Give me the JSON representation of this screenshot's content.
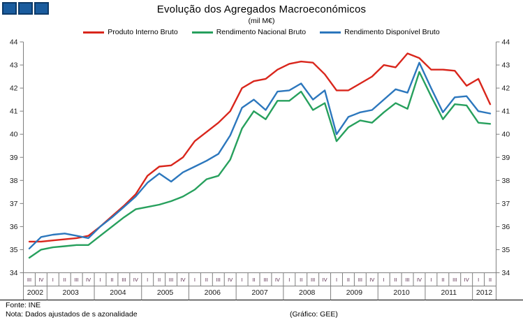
{
  "title": "Evolução dos Agregados  Macroeconómicos",
  "subtitle": "(mil M€)",
  "logo": {
    "square_count": 3,
    "fill_color": "#1a5c9e",
    "border_color": "#0d3a68"
  },
  "footer": {
    "source": "Fonte: INE",
    "note": "Nota: Dados  ajustados  de s azonalidade",
    "credit": "(Gráfico:  GEE)"
  },
  "axis": {
    "y_min": 34,
    "y_max": 44,
    "y_step": 1,
    "axis_color": "#7f7f7f",
    "tick_label_color": "#1a1a1a",
    "quarter_label_color": "#5a2c4e",
    "year_label_color": "#1a1a1a"
  },
  "chart_data": {
    "type": "line",
    "title": "Evolução dos Agregados Macroeconómicos",
    "subtitle": "(mil M€)",
    "ylabel": "",
    "xlabel": "",
    "ylim": [
      34,
      44
    ],
    "grid": false,
    "legend_position": "top",
    "years": [
      {
        "label": "2002",
        "quarters": [
          "III",
          "IV"
        ]
      },
      {
        "label": "2003",
        "quarters": [
          "I",
          "II",
          "III",
          "IV"
        ]
      },
      {
        "label": "2004",
        "quarters": [
          "I",
          "II",
          "III",
          "IV"
        ]
      },
      {
        "label": "2005",
        "quarters": [
          "I",
          "II",
          "III",
          "IV"
        ]
      },
      {
        "label": "2006",
        "quarters": [
          "I",
          "II",
          "III",
          "IV"
        ]
      },
      {
        "label": "2007",
        "quarters": [
          "I",
          "II",
          "III",
          "IV"
        ]
      },
      {
        "label": "2008",
        "quarters": [
          "I",
          "II",
          "III",
          "IV"
        ]
      },
      {
        "label": "2009",
        "quarters": [
          "I",
          "II",
          "III",
          "IV"
        ]
      },
      {
        "label": "2010",
        "quarters": [
          "I",
          "II",
          "III",
          "IV"
        ]
      },
      {
        "label": "2011",
        "quarters": [
          "I",
          "II",
          "III",
          "IV"
        ]
      },
      {
        "label": "2012",
        "quarters": [
          "I",
          "II"
        ]
      }
    ],
    "series": [
      {
        "name": "Produto Interno Bruto",
        "color": "#d9261c",
        "values": [
          35.35,
          35.35,
          35.4,
          35.45,
          35.5,
          35.6,
          36.0,
          36.45,
          36.9,
          37.4,
          38.2,
          38.6,
          38.65,
          39.0,
          39.7,
          40.1,
          40.5,
          41.0,
          42.0,
          42.3,
          42.4,
          42.8,
          43.05,
          43.15,
          43.1,
          42.6,
          41.9,
          41.9,
          42.2,
          42.5,
          43.0,
          42.9,
          43.5,
          43.3,
          42.8,
          42.8,
          42.75,
          42.1,
          42.4,
          41.3
        ]
      },
      {
        "name": "Rendimento Nacional Bruto",
        "color": "#27a05d",
        "values": [
          34.65,
          35.0,
          35.1,
          35.15,
          35.2,
          35.2,
          35.6,
          36.0,
          36.4,
          36.75,
          36.85,
          36.95,
          37.1,
          37.3,
          37.6,
          38.05,
          38.2,
          38.9,
          40.25,
          41.0,
          40.65,
          41.45,
          41.45,
          41.85,
          41.05,
          41.35,
          39.7,
          40.3,
          40.6,
          40.5,
          40.95,
          41.35,
          41.1,
          42.7,
          41.65,
          40.65,
          41.3,
          41.25,
          40.5,
          40.45
        ]
      },
      {
        "name": "Rendimento Disponível Bruto",
        "color": "#2c77bd",
        "values": [
          35.05,
          35.55,
          35.65,
          35.7,
          35.6,
          35.5,
          36.0,
          36.4,
          36.85,
          37.3,
          37.9,
          38.3,
          37.95,
          38.35,
          38.6,
          38.85,
          39.15,
          39.95,
          41.15,
          41.5,
          41.05,
          41.85,
          41.9,
          42.2,
          41.5,
          41.9,
          40.0,
          40.75,
          40.95,
          41.05,
          41.5,
          41.95,
          41.8,
          43.1,
          42.0,
          40.95,
          41.6,
          41.65,
          41.0,
          40.9
        ]
      }
    ]
  }
}
